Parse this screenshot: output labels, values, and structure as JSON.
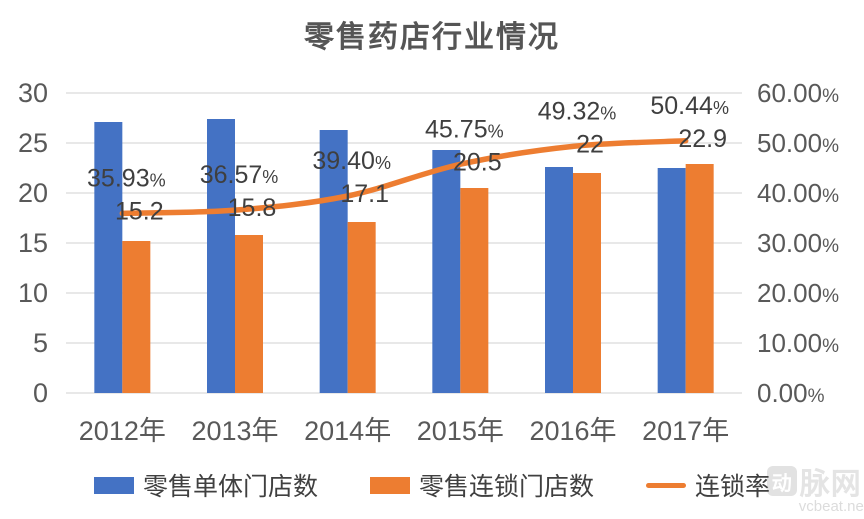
{
  "watermark": {
    "logo_char": "动",
    "brand": "脉网",
    "url": "vcbeat.net"
  },
  "chart_data": {
    "type": "combo-bar-line",
    "title": "零售药店行业情况",
    "categories": [
      "2012年",
      "2013年",
      "2014年",
      "2015年",
      "2016年",
      "2017年"
    ],
    "series": [
      {
        "name": "零售单体门店数",
        "type": "bar",
        "axis": "left",
        "color": "#4472C4",
        "values": [
          27.1,
          27.4,
          26.3,
          24.3,
          22.6,
          22.5
        ]
      },
      {
        "name": "零售连锁门店数",
        "type": "bar",
        "axis": "left",
        "color": "#ED7D31",
        "values": [
          15.2,
          15.8,
          17.1,
          20.5,
          22,
          22.9
        ],
        "data_labels": [
          "15.2",
          "15.8",
          "17.1",
          "20.5",
          "22",
          "22.9"
        ]
      },
      {
        "name": "连锁率",
        "type": "line",
        "axis": "right",
        "color": "#ED7D31",
        "values": [
          35.93,
          36.57,
          39.4,
          45.75,
          49.32,
          50.44
        ],
        "data_labels": [
          "35.93%",
          "36.57%",
          "39.40%",
          "45.75%",
          "49.32%",
          "50.44%"
        ]
      }
    ],
    "left_axis": {
      "min": 0,
      "max": 30,
      "step": 5,
      "ticks": [
        "0",
        "5",
        "10",
        "15",
        "20",
        "25",
        "30"
      ]
    },
    "right_axis": {
      "min": 0,
      "max": 60,
      "step": 10,
      "ticks": [
        "0.00%",
        "10.00%",
        "20.00%",
        "30.00%",
        "40.00%",
        "50.00%",
        "60.00%"
      ]
    },
    "grid": true,
    "legend_position": "bottom",
    "colors": {
      "grid": "#D9D9D9",
      "axis_text": "#595959",
      "label_text": "#3F3F3F"
    }
  }
}
